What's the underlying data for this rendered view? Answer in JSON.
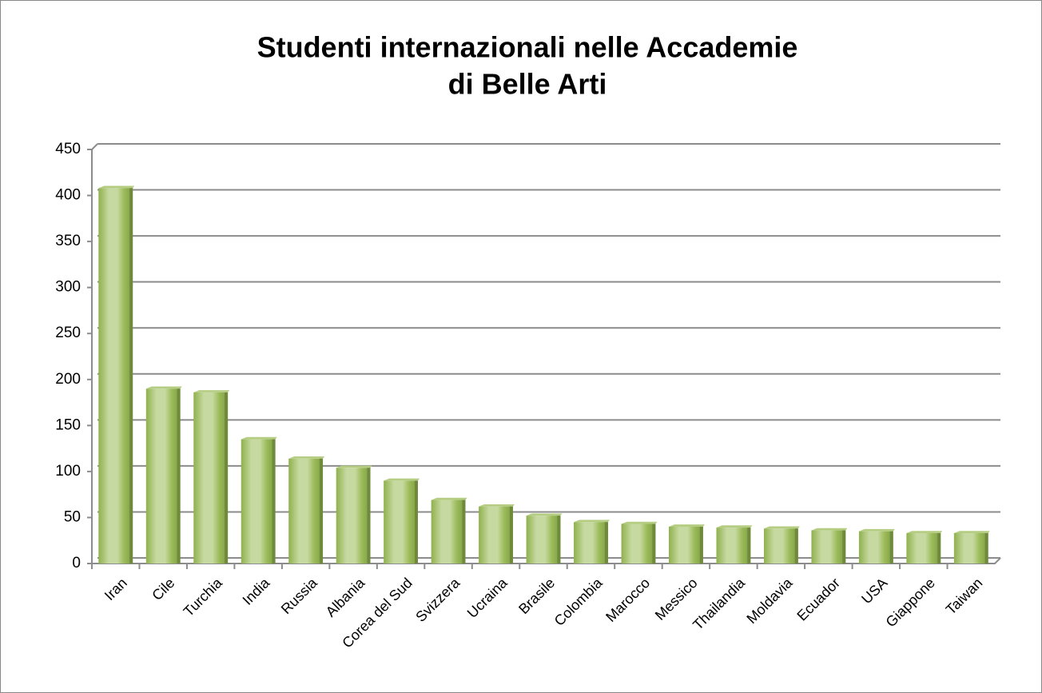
{
  "chart_data": {
    "type": "bar",
    "title": [
      "Studenti internazionali nelle Accademie",
      "di Belle Arti"
    ],
    "categories": [
      "Iran",
      "Cile",
      "Turchia",
      "India",
      "Russia",
      "Albania",
      "Corea del Sud",
      "Svizzera",
      "Ucraina",
      "Brasile",
      "Colombia",
      "Marocco",
      "Messico",
      "Thailandia",
      "Moldavia",
      "Ecuador",
      "USA",
      "Giappone",
      "Taiwan"
    ],
    "values": [
      408,
      190,
      186,
      135,
      114,
      104,
      90,
      69,
      62,
      52,
      45,
      43,
      40,
      39,
      38,
      36,
      35,
      33,
      33
    ],
    "color": "#9bbb59",
    "ylim": [
      0,
      450
    ],
    "yticks": [
      0,
      50,
      100,
      150,
      200,
      250,
      300,
      350,
      400,
      450
    ],
    "grid": true
  }
}
